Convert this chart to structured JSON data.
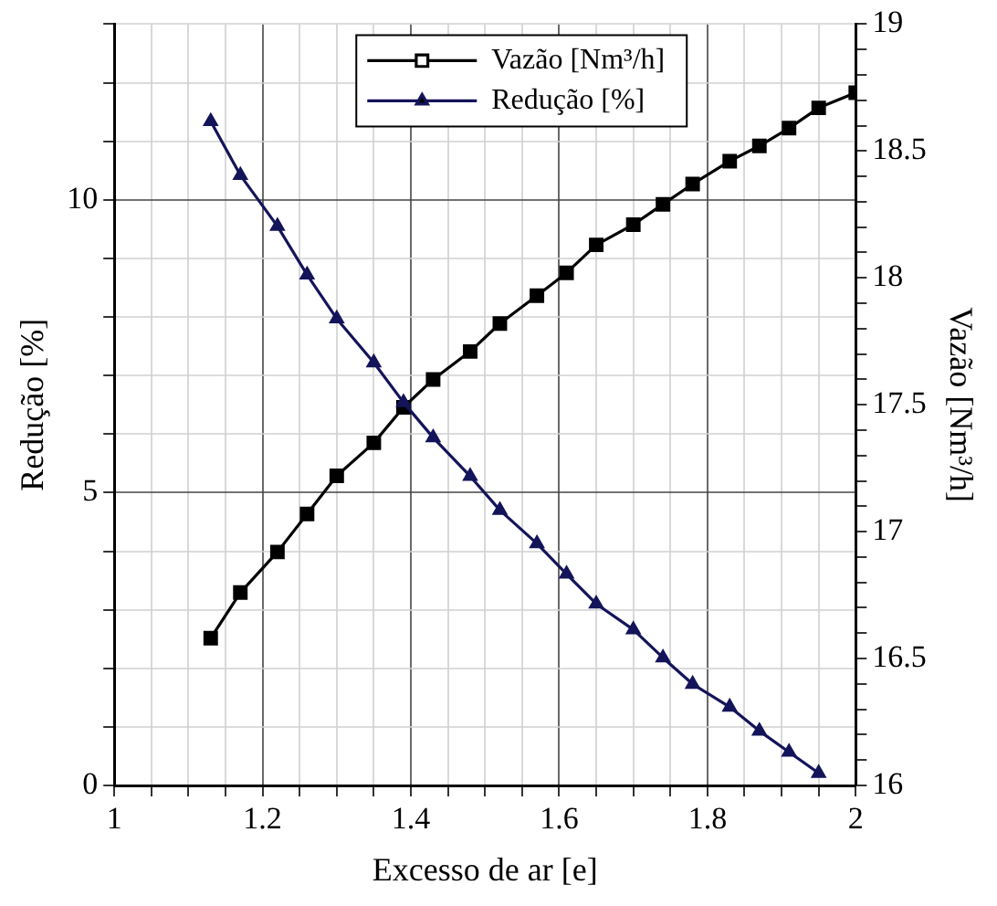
{
  "chart_data": {
    "type": "line",
    "xlabel": "Excesso de ar [e]",
    "ylabel": "Redução [%]",
    "y2label": "Vazão [Nm³/h]",
    "xlim": [
      1,
      2
    ],
    "xticks": [
      1,
      {
        "value": 1.05,
        "label": null
      },
      {
        "value": 1.1,
        "label": null
      },
      {
        "value": 1.15,
        "label": null
      },
      1.2,
      {
        "value": 1.25,
        "label": null
      },
      {
        "value": 1.3,
        "label": null
      },
      {
        "value": 1.35,
        "label": null
      },
      1.4,
      {
        "value": 1.45,
        "label": null
      },
      {
        "value": 1.5,
        "label": null
      },
      {
        "value": 1.55,
        "label": null
      },
      1.6,
      {
        "value": 1.65,
        "label": null
      },
      {
        "value": 1.7,
        "label": null
      },
      {
        "value": 1.75,
        "label": null
      },
      1.8,
      {
        "value": 1.85,
        "label": null
      },
      {
        "value": 1.9,
        "label": null
      },
      {
        "value": 1.95,
        "label": null
      },
      2
    ],
    "ylim": [
      0,
      13
    ],
    "yticks": [
      0,
      {
        "value": 1,
        "label": null
      },
      {
        "value": 2,
        "label": null
      },
      {
        "value": 3,
        "label": null
      },
      {
        "value": 4,
        "label": null
      },
      5,
      {
        "value": 6,
        "label": null
      },
      {
        "value": 7,
        "label": null
      },
      {
        "value": 8,
        "label": null
      },
      {
        "value": 9,
        "label": null
      },
      10,
      {
        "value": 11,
        "label": null
      },
      {
        "value": 12,
        "label": null
      },
      {
        "value": 13,
        "label": null
      }
    ],
    "y2lim": [
      16,
      19
    ],
    "y2ticks": [
      16,
      {
        "value": 16.1,
        "label": null
      },
      {
        "value": 16.2,
        "label": null
      },
      {
        "value": 16.3,
        "label": null
      },
      {
        "value": 16.4,
        "label": null
      },
      16.5,
      {
        "value": 16.6,
        "label": null
      },
      {
        "value": 16.7,
        "label": null
      },
      {
        "value": 16.8,
        "label": null
      },
      {
        "value": 16.9,
        "label": null
      },
      17,
      {
        "value": 17.1,
        "label": null
      },
      {
        "value": 17.2,
        "label": null
      },
      {
        "value": 17.3,
        "label": null
      },
      {
        "value": 17.4,
        "label": null
      },
      17.5,
      {
        "value": 17.6,
        "label": null
      },
      {
        "value": 17.7,
        "label": null
      },
      {
        "value": 17.8,
        "label": null
      },
      {
        "value": 17.9,
        "label": null
      },
      18,
      {
        "value": 18.1,
        "label": null
      },
      {
        "value": 18.2,
        "label": null
      },
      {
        "value": 18.3,
        "label": null
      },
      {
        "value": 18.4,
        "label": null
      },
      18.5,
      {
        "value": 18.6,
        "label": null
      },
      {
        "value": 18.7,
        "label": null
      },
      {
        "value": 18.8,
        "label": null
      },
      {
        "value": 18.9,
        "label": null
      },
      19
    ],
    "grid": true,
    "legend": "top",
    "line_style": "solid",
    "series": [
      {
        "name": "Vazão [Nm³/h]",
        "color": "#000000",
        "axis": "y2",
        "marker": "square",
        "x": [
          1.13,
          1.17,
          1.22,
          1.26,
          1.3,
          1.35,
          1.39,
          1.43,
          1.48,
          1.52,
          1.57,
          1.61,
          1.65,
          1.7,
          1.74,
          1.78,
          1.83,
          1.87,
          1.91,
          1.95,
          2.0
        ],
        "values": [
          16.58,
          16.76,
          16.92,
          17.07,
          17.22,
          17.35,
          17.49,
          17.6,
          17.71,
          17.82,
          17.93,
          18.02,
          18.13,
          18.21,
          18.29,
          18.37,
          18.46,
          18.52,
          18.59,
          18.67,
          18.73
        ]
      },
      {
        "name": "Redução [%]",
        "color": "#14145a",
        "marker": "triangle",
        "x": [
          1.13,
          1.17,
          1.22,
          1.26,
          1.3,
          1.35,
          1.39,
          1.43,
          1.48,
          1.52,
          1.57,
          1.61,
          1.65,
          1.7,
          1.74,
          1.78,
          1.83,
          1.87,
          1.91,
          1.95
        ],
        "values": [
          11.34,
          10.42,
          9.55,
          8.72,
          7.97,
          7.22,
          6.54,
          5.94,
          5.28,
          4.7,
          4.13,
          3.61,
          3.1,
          2.66,
          2.18,
          1.73,
          1.34,
          0.93,
          0.57,
          0.21
        ]
      }
    ]
  }
}
